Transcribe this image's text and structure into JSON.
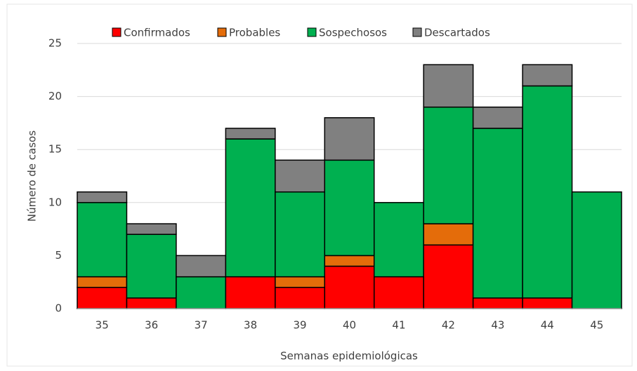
{
  "chart_data": {
    "type": "stacked_bar",
    "x_label": "Semanas epidemiológicas",
    "y_label": "Número de casos",
    "categories": [
      "35",
      "36",
      "37",
      "38",
      "39",
      "40",
      "41",
      "42",
      "43",
      "44",
      "45"
    ],
    "series": [
      {
        "name": "Confirmados",
        "color": "#ff0000",
        "values": [
          2,
          1,
          0,
          3,
          2,
          4,
          3,
          6,
          1,
          1,
          0
        ]
      },
      {
        "name": "Probables",
        "color": "#e46c0a",
        "values": [
          1,
          0,
          0,
          0,
          1,
          1,
          0,
          2,
          0,
          0,
          0
        ]
      },
      {
        "name": "Sospechosos",
        "color": "#00b050",
        "values": [
          7,
          6,
          3,
          13,
          8,
          9,
          7,
          11,
          16,
          20,
          11
        ]
      },
      {
        "name": "Descartados",
        "color": "#808080",
        "values": [
          1,
          1,
          2,
          1,
          3,
          4,
          0,
          4,
          2,
          2,
          0
        ]
      }
    ],
    "ylim": [
      0,
      25
    ],
    "yticks": [
      0,
      5,
      10,
      15,
      20,
      25
    ],
    "grid": true,
    "legend": "top"
  }
}
